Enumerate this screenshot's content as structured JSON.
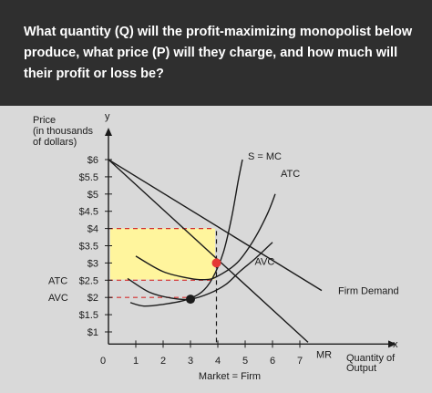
{
  "question": "What quantity (Q) will the profit-maximizing monopolist below produce, what price (P) will they charge, and how much will their profit or loss be?",
  "chart_data": {
    "type": "line",
    "ylabel_lines": [
      "Price",
      "(in thousands",
      "of dollars)"
    ],
    "y_axis_symbol": "y",
    "x_axis_symbol": "x",
    "xlabel_lines": [
      "Quantity of",
      "Output"
    ],
    "x_caption": "Market = Firm",
    "xlim": [
      0,
      7.8
    ],
    "ylim": [
      0.7,
      6.2
    ],
    "x_ticks": [
      {
        "v": 0,
        "label": "0"
      },
      {
        "v": 1,
        "label": "1"
      },
      {
        "v": 2,
        "label": "2"
      },
      {
        "v": 3,
        "label": "3"
      },
      {
        "v": 4,
        "label": "4"
      },
      {
        "v": 5,
        "label": "5"
      },
      {
        "v": 6,
        "label": "6"
      },
      {
        "v": 7,
        "label": "7"
      }
    ],
    "y_ticks": [
      {
        "v": 6,
        "label": "$6"
      },
      {
        "v": 5.5,
        "label": "$5.5"
      },
      {
        "v": 5,
        "label": "$5"
      },
      {
        "v": 4.5,
        "label": "$4.5"
      },
      {
        "v": 4,
        "label": "$4"
      },
      {
        "v": 3.5,
        "label": "$3.5"
      },
      {
        "v": 3,
        "label": "$3"
      },
      {
        "v": 2.5,
        "label": "$2.5"
      },
      {
        "v": 2,
        "label": "$2"
      },
      {
        "v": 1.5,
        "label": "$1.5"
      },
      {
        "v": 1,
        "label": "$1"
      }
    ],
    "y_tick_prefixes": [
      {
        "v": 2.5,
        "label": "ATC"
      },
      {
        "v": 2,
        "label": "AVC"
      }
    ],
    "series": [
      {
        "name": "Firm Demand",
        "points": [
          [
            0,
            6
          ],
          [
            7.8,
            2.2
          ]
        ]
      },
      {
        "name": "MR",
        "points": [
          [
            0,
            6
          ],
          [
            7.3,
            0.7
          ]
        ]
      },
      {
        "name": "S = MC",
        "points": [
          [
            0.8,
            1.85
          ],
          [
            1.3,
            1.75
          ],
          [
            2,
            1.8
          ],
          [
            2.8,
            1.92
          ],
          [
            3.4,
            2.15
          ],
          [
            3.8,
            2.55
          ],
          [
            4.2,
            3.3
          ],
          [
            4.5,
            4.3
          ],
          [
            4.75,
            5.4
          ],
          [
            4.9,
            6.0
          ]
        ]
      },
      {
        "name": "ATC",
        "points": [
          [
            1.0,
            3.2
          ],
          [
            2.0,
            2.75
          ],
          [
            3.0,
            2.55
          ],
          [
            3.6,
            2.52
          ],
          [
            4.0,
            2.62
          ],
          [
            4.7,
            3.0
          ],
          [
            5.3,
            3.65
          ],
          [
            5.8,
            4.4
          ],
          [
            6.1,
            5.0
          ]
        ]
      },
      {
        "name": "AVC",
        "points": [
          [
            0.7,
            2.55
          ],
          [
            1.5,
            2.15
          ],
          [
            2.3,
            1.98
          ],
          [
            3.0,
            1.95
          ],
          [
            3.7,
            2.12
          ],
          [
            4.3,
            2.38
          ],
          [
            4.8,
            2.75
          ],
          [
            5.4,
            3.15
          ],
          [
            6.0,
            3.6
          ]
        ]
      }
    ],
    "shaded_area": {
      "x": [
        0,
        3.9
      ],
      "y": [
        2.52,
        4.0
      ],
      "color": "#fff59d"
    },
    "points": [
      {
        "x": 3.95,
        "y": 3.0,
        "color": "#e53935"
      },
      {
        "x": 3.0,
        "y": 1.95,
        "color": "#1b1b1b"
      }
    ],
    "dashed_lines": [
      {
        "from": [
          0,
          4
        ],
        "to": [
          3.9,
          4
        ],
        "color": "#d32f2f"
      },
      {
        "from": [
          0,
          2.5
        ],
        "to": [
          3.9,
          2.5
        ],
        "color": "#d32f2f"
      },
      {
        "from": [
          0,
          2
        ],
        "to": [
          3.0,
          2
        ],
        "color": "#d32f2f"
      },
      {
        "from": [
          3.95,
          0.7
        ],
        "to": [
          3.95,
          4
        ],
        "color": "#1b1b1b"
      }
    ],
    "curve_labels": [
      {
        "text": "S = MC",
        "x": 5.1,
        "y": 6.0
      },
      {
        "text": "ATC",
        "x": 6.3,
        "y": 5.5
      },
      {
        "text": "AVC",
        "x": 5.35,
        "y": 2.95
      },
      {
        "text": "Firm Demand",
        "x": 8.4,
        "y": 2.1
      },
      {
        "text": "MR",
        "x": 7.6,
        "y": 0.25
      }
    ]
  }
}
